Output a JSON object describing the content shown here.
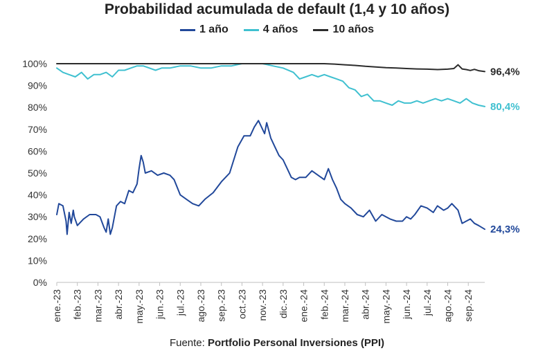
{
  "chart_data": {
    "type": "line",
    "title": "Probabilidad acumulada de default (1,4 y 10 años)",
    "source_label": "Fuente:",
    "source_text": "Portfolio Personal Inversiones (PPI)",
    "ylim": [
      0,
      100
    ],
    "yticks": [
      "0%",
      "10%",
      "20%",
      "30%",
      "40%",
      "50%",
      "60%",
      "70%",
      "80%",
      "90%",
      "100%"
    ],
    "ytick_values": [
      0,
      10,
      20,
      30,
      40,
      50,
      60,
      70,
      80,
      90,
      100
    ],
    "xlim": [
      0,
      20.8
    ],
    "xticks": [
      "ene.-23",
      "feb.-23",
      "mar.-23",
      "abr.-23",
      "may.-23",
      "jun.-23",
      "jul.-23",
      "ago.-23",
      "sep.-23",
      "oct.-23",
      "nov.-23",
      "dic.-23",
      "ene.-24",
      "feb.-24",
      "mar.-24",
      "abr.-24",
      "may.-24",
      "jun.-24",
      "jul.-24",
      "ago.-24",
      "sep.-24"
    ],
    "series": [
      {
        "name": "1 año",
        "color": "#21489a",
        "end_label": "24,3%",
        "x": [
          0,
          0.1,
          0.3,
          0.45,
          0.5,
          0.6,
          0.7,
          0.8,
          0.85,
          1.0,
          1.3,
          1.6,
          1.9,
          2.1,
          2.3,
          2.4,
          2.5,
          2.6,
          2.7,
          2.9,
          3.1,
          3.3,
          3.5,
          3.7,
          3.9,
          4.0,
          4.1,
          4.2,
          4.3,
          4.6,
          4.9,
          5.2,
          5.5,
          5.7,
          6.0,
          6.3,
          6.6,
          6.9,
          7.2,
          7.6,
          8.0,
          8.4,
          8.8,
          9.1,
          9.4,
          9.6,
          9.8,
          10.1,
          10.2,
          10.4,
          10.6,
          10.8,
          11.0,
          11.2,
          11.4,
          11.6,
          11.8,
          12.1,
          12.4,
          12.7,
          13.0,
          13.2,
          13.4,
          13.6,
          13.8,
          14.0,
          14.3,
          14.6,
          14.9,
          15.2,
          15.5,
          15.8,
          16.0,
          16.2,
          16.5,
          16.8,
          17.0,
          17.2,
          17.4,
          17.7,
          18.0,
          18.3,
          18.5,
          18.8,
          19.0,
          19.2,
          19.5,
          19.7,
          19.9,
          20.1,
          20.3,
          20.5,
          20.8
        ],
        "values": [
          31,
          36,
          35,
          28,
          22,
          32,
          27,
          33,
          30,
          26,
          29,
          31,
          31,
          30,
          25,
          23,
          29,
          22,
          25,
          35,
          37,
          36,
          42,
          41,
          45,
          52,
          58,
          55,
          50,
          51,
          49,
          50,
          49,
          47,
          40,
          38,
          36,
          35,
          38,
          41,
          46,
          50,
          62,
          67,
          67,
          71,
          74,
          68,
          73,
          66,
          62,
          58,
          56,
          52,
          48,
          47,
          48,
          48,
          51,
          49,
          47,
          52,
          47,
          43,
          38,
          36,
          34,
          31,
          30,
          33,
          28,
          31,
          30,
          29,
          28,
          28,
          30,
          29,
          31,
          35,
          34,
          32,
          35,
          33,
          34,
          36,
          33,
          27,
          28,
          29,
          27,
          26,
          24.3
        ]
      },
      {
        "name": "4 años",
        "color": "#3fc0d0",
        "end_label": "80,4%",
        "x": [
          0,
          0.3,
          0.6,
          0.9,
          1.2,
          1.5,
          1.8,
          2.1,
          2.4,
          2.7,
          3.0,
          3.3,
          3.6,
          3.9,
          4.2,
          4.5,
          4.8,
          5.1,
          5.5,
          6.0,
          6.5,
          7.0,
          7.5,
          8.0,
          8.5,
          9.0,
          9.5,
          10.0,
          10.5,
          11.0,
          11.5,
          11.8,
          12.1,
          12.4,
          12.7,
          13.0,
          13.3,
          13.6,
          13.9,
          14.2,
          14.5,
          14.8,
          15.1,
          15.4,
          15.7,
          16.0,
          16.3,
          16.6,
          16.9,
          17.2,
          17.5,
          17.8,
          18.1,
          18.4,
          18.7,
          19.0,
          19.3,
          19.6,
          19.9,
          20.2,
          20.5,
          20.8
        ],
        "values": [
          98,
          96,
          95,
          94,
          96,
          93,
          95,
          95,
          96,
          94,
          97,
          97,
          98,
          99,
          99,
          98,
          97,
          98,
          98,
          99,
          99,
          98,
          98,
          99,
          99,
          100,
          100,
          100,
          99,
          98,
          96,
          93,
          94,
          95,
          94,
          95,
          94,
          93,
          92,
          89,
          88,
          85,
          86,
          83,
          83,
          82,
          81,
          83,
          82,
          82,
          83,
          82,
          83,
          84,
          83,
          84,
          83,
          82,
          84,
          82,
          81,
          80.4
        ]
      },
      {
        "name": "10 años",
        "color": "#2b2b2b",
        "end_label": "96,4%",
        "x": [
          0,
          1,
          2,
          3,
          4,
          5,
          6,
          7,
          8,
          9,
          10,
          11,
          12,
          13,
          13.5,
          14.0,
          14.5,
          15.0,
          15.5,
          16.0,
          16.5,
          17.0,
          17.5,
          18.0,
          18.5,
          19.0,
          19.3,
          19.5,
          19.7,
          19.9,
          20.1,
          20.3,
          20.5,
          20.8
        ],
        "values": [
          100,
          100,
          100,
          100,
          100,
          100,
          100,
          100,
          100,
          100,
          100,
          100,
          100,
          100,
          99.8,
          99.5,
          99.2,
          98.8,
          98.5,
          98.2,
          98.0,
          97.8,
          97.6,
          97.5,
          97.3,
          97.5,
          97.8,
          99.5,
          97.6,
          97.3,
          96.9,
          97.4,
          96.8,
          96.4
        ]
      }
    ]
  }
}
